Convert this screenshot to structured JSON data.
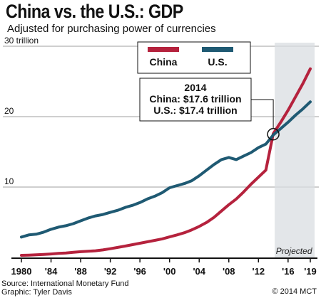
{
  "header": {
    "title": "China vs. the U.S.: GDP",
    "subtitle": "Adjusted for purchasing power of currencies"
  },
  "footer": {
    "source": "Source: International Monetary Fund",
    "credit": "Graphic: Tyler Davis",
    "copyright": "© 2014 MCT"
  },
  "colors": {
    "china": "#b5223d",
    "us": "#1f5a73",
    "projection_shade": "#d9dee2"
  },
  "chart_data": {
    "type": "line",
    "title": "China vs. the U.S.: GDP",
    "subtitle": "Adjusted for purchasing power of currencies",
    "x_tick_labels": [
      "1980",
      "'84",
      "'88",
      "'92",
      "'96",
      "'00",
      "'04",
      "'08",
      "'12",
      "'16",
      "'19"
    ],
    "x_tick_values": [
      1980,
      1984,
      1988,
      1992,
      1996,
      2000,
      2004,
      2008,
      2012,
      2016,
      2019
    ],
    "y_tick_labels": [
      "30 trillion",
      "20",
      "10"
    ],
    "y_tick_values": [
      30,
      20,
      10
    ],
    "xlim": [
      1980,
      2019
    ],
    "ylim": [
      0,
      30
    ],
    "grid": "horizontal",
    "legend": {
      "position": "top-right",
      "entries": [
        "China",
        "U.S."
      ]
    },
    "projection": {
      "start": 2014,
      "end": 2019,
      "label": "Projected"
    },
    "series": [
      {
        "name": "China",
        "x": [
          1980,
          1981,
          1982,
          1983,
          1984,
          1985,
          1986,
          1987,
          1988,
          1989,
          1990,
          1991,
          1992,
          1993,
          1994,
          1995,
          1996,
          1997,
          1998,
          1999,
          2000,
          2001,
          2002,
          2003,
          2004,
          2005,
          2006,
          2007,
          2008,
          2009,
          2010,
          2011,
          2012,
          2013,
          2014,
          2015,
          2016,
          2017,
          2018,
          2019
        ],
        "values": [
          0.3,
          0.33,
          0.38,
          0.43,
          0.5,
          0.58,
          0.64,
          0.73,
          0.82,
          0.88,
          0.95,
          1.07,
          1.24,
          1.42,
          1.62,
          1.82,
          2.02,
          2.22,
          2.42,
          2.64,
          2.92,
          3.2,
          3.52,
          3.92,
          4.4,
          4.97,
          5.7,
          6.6,
          7.5,
          8.3,
          9.3,
          10.4,
          11.4,
          12.4,
          17.6,
          19.2,
          20.9,
          22.8,
          24.7,
          26.8
        ]
      },
      {
        "name": "U.S.",
        "x": [
          1980,
          1981,
          1982,
          1983,
          1984,
          1985,
          1986,
          1987,
          1988,
          1989,
          1990,
          1991,
          1992,
          1993,
          1994,
          1995,
          1996,
          1997,
          1998,
          1999,
          2000,
          2001,
          2002,
          2003,
          2004,
          2005,
          2006,
          2007,
          2008,
          2009,
          2010,
          2011,
          2012,
          2013,
          2014,
          2015,
          2016,
          2017,
          2018,
          2019
        ],
        "values": [
          2.9,
          3.2,
          3.3,
          3.6,
          4.0,
          4.3,
          4.5,
          4.8,
          5.2,
          5.6,
          5.9,
          6.1,
          6.4,
          6.7,
          7.1,
          7.4,
          7.8,
          8.3,
          8.7,
          9.2,
          9.9,
          10.2,
          10.5,
          10.9,
          11.6,
          12.4,
          13.2,
          13.9,
          14.2,
          13.9,
          14.4,
          14.9,
          15.6,
          16.1,
          17.4,
          18.3,
          19.2,
          20.2,
          21.1,
          22.1
        ]
      }
    ],
    "annotation": {
      "year_label": "2014",
      "line1": "China: $17.6 trillion",
      "line2": "U.S.: $17.4 trillion",
      "x": 2014,
      "y": 17.5
    }
  }
}
